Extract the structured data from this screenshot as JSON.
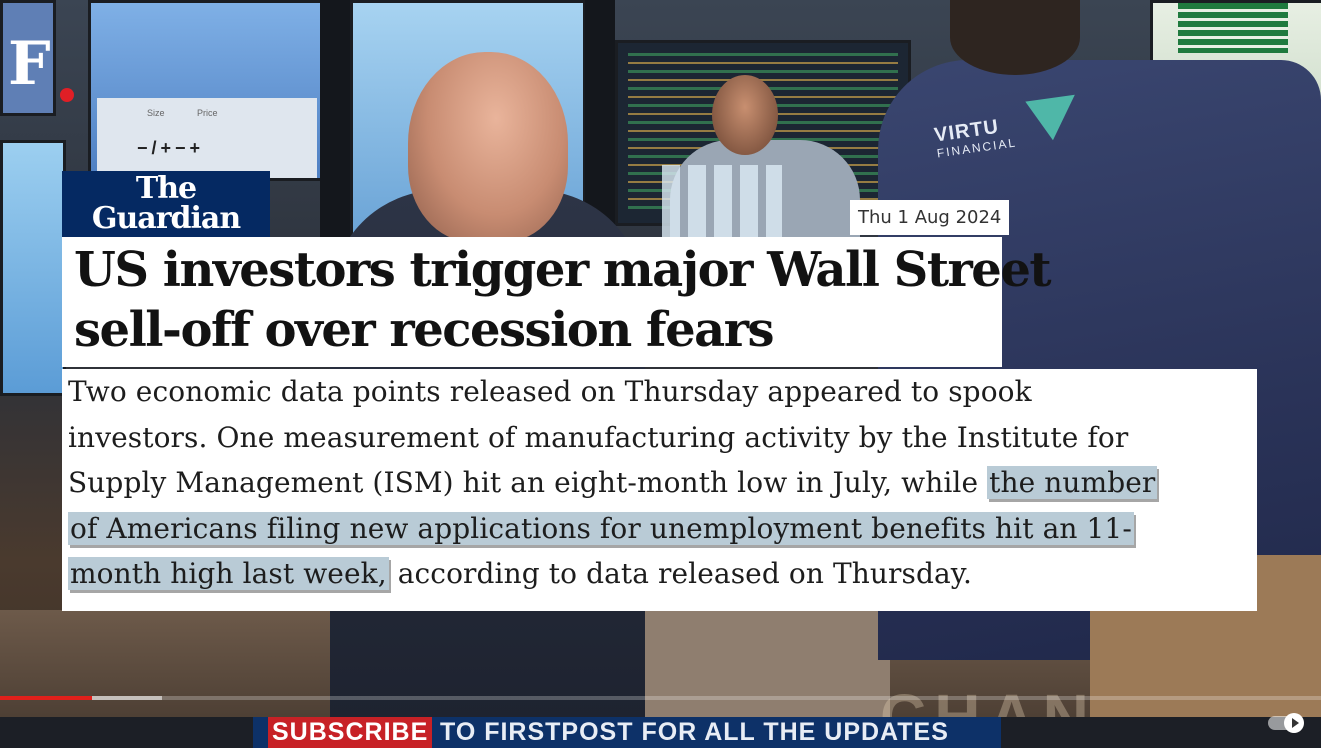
{
  "brand": {
    "logo_letter": "F",
    "logo_dot_color": "#e01f26"
  },
  "background": {
    "jacket_brand": "VIRTU",
    "jacket_brand_sub": "FINANCIAL",
    "monitor_text_1": "Size",
    "monitor_text_2": "Price",
    "monitor_text_3": "−/+−+"
  },
  "article": {
    "source_line_1": "The",
    "source_line_2": "Guardian",
    "source_bg_color": "#052962",
    "date": "Thu 1 Aug 2024",
    "headline_line_1": "US investors trigger major Wall Street",
    "headline_line_2": "sell-off over recession fears",
    "body_line_1": "Two economic data points released on Thursday appeared to spook",
    "body_line_2": "investors. One measurement of manufacturing activity by the Institute for",
    "body_line_3_plain": "Supply Management (ISM) hit an eight-month low in July, while ",
    "body_line_3_highlight": "the number",
    "body_line_4_highlight": "of Americans filing new applications for unemployment benefits hit an 11-",
    "body_line_5_highlight": "month high last week,",
    "body_line_5_plain": " according to data released on Thursday.",
    "highlight_color": "#b9cbd6"
  },
  "player": {
    "progress_played_fraction": 0.07,
    "progress_buffer_fraction": 0.123,
    "progress_color": "#e0201b",
    "autoplay_icon": "play-toggle-icon"
  },
  "ticker": {
    "subscribe_label": "SUBSCRIBE",
    "rest_label": "TO FIRSTPOST FOR ALL THE UPDATES",
    "subscribe_color": "#c72126"
  }
}
